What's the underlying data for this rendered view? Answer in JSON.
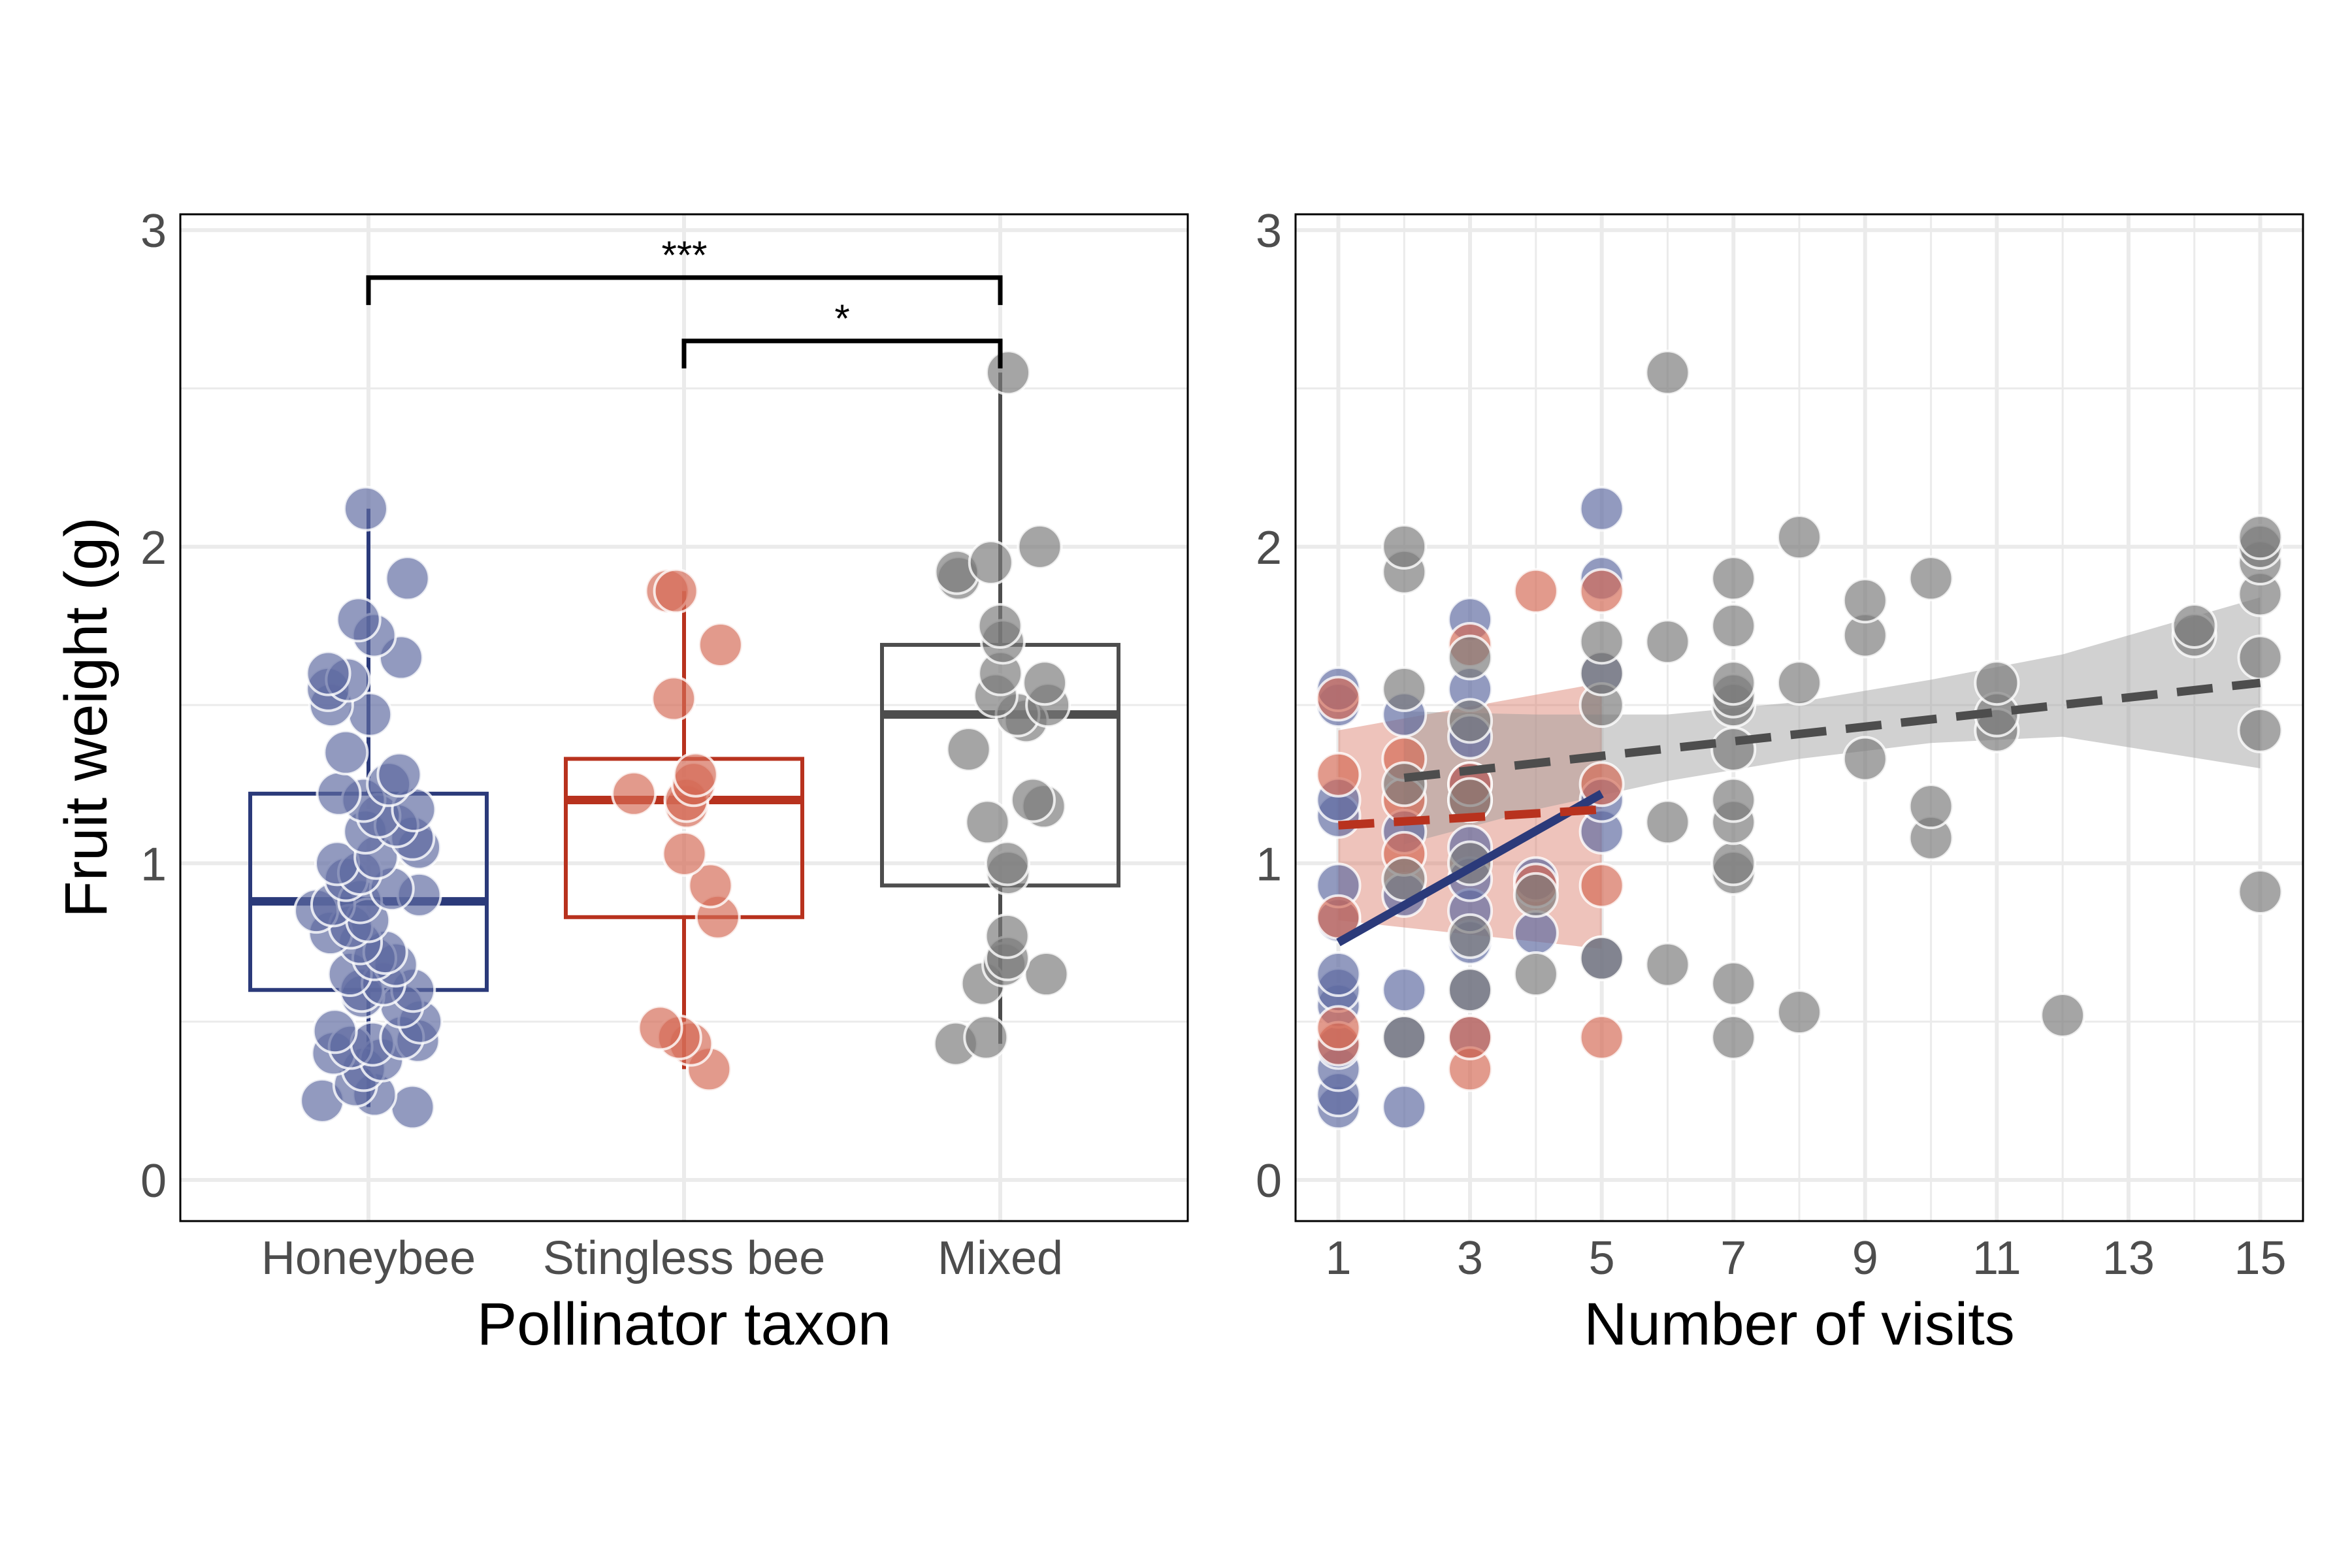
{
  "colors": {
    "honeybee": "#2b3a7a",
    "stingless": "#b8321e",
    "mixed": "#4d4d4d",
    "honeybee_fill": "#5e6aa0",
    "stingless_fill": "#d46a55",
    "mixed_fill": "#7a7a7a",
    "grid": "#ebebeb"
  },
  "chart_data": [
    {
      "type": "box",
      "title": "",
      "xlabel": "Pollinator taxon",
      "ylabel": "Fruit weight (g)",
      "ylim": [
        -0.13,
        3.05
      ],
      "yticks": [
        "0",
        "1",
        "2",
        "3"
      ],
      "categories": [
        "Honeybee",
        "Stingless bee",
        "Mixed"
      ],
      "grid": true,
      "boxes": [
        {
          "name": "Honeybee",
          "whisker_low": 0.23,
          "q1": 0.6,
          "median": 0.88,
          "q3": 1.22,
          "whisker_high": 2.12,
          "points": [
            0.23,
            0.25,
            0.27,
            0.3,
            0.35,
            0.38,
            0.4,
            0.42,
            0.43,
            0.44,
            0.45,
            0.47,
            0.5,
            0.55,
            0.58,
            0.6,
            0.6,
            0.62,
            0.65,
            0.68,
            0.7,
            0.72,
            0.75,
            0.78,
            0.8,
            0.82,
            0.85,
            0.87,
            0.88,
            0.9,
            0.92,
            0.95,
            0.97,
            1.0,
            1.02,
            1.05,
            1.08,
            1.1,
            1.12,
            1.15,
            1.17,
            1.2,
            1.22,
            1.25,
            1.28,
            1.35,
            1.47,
            1.5,
            1.55,
            1.58,
            1.6,
            1.65,
            1.72,
            1.77,
            1.9,
            2.12
          ]
        },
        {
          "name": "Stingless bee",
          "whisker_low": 0.35,
          "q1": 0.83,
          "median": 1.2,
          "q3": 1.33,
          "whisker_high": 1.86,
          "points": [
            0.35,
            0.43,
            0.45,
            0.48,
            0.83,
            0.93,
            1.03,
            1.18,
            1.2,
            1.22,
            1.25,
            1.28,
            1.52,
            1.69,
            1.86,
            1.86
          ]
        },
        {
          "name": "Mixed",
          "whisker_low": 0.43,
          "q1": 0.93,
          "median": 1.47,
          "q3": 1.69,
          "whisker_high": 2.55,
          "points": [
            0.43,
            0.45,
            0.62,
            0.65,
            0.68,
            0.7,
            0.77,
            0.97,
            1.0,
            1.13,
            1.18,
            1.2,
            1.36,
            1.45,
            1.47,
            1.5,
            1.53,
            1.57,
            1.6,
            1.7,
            1.75,
            1.9,
            1.92,
            1.95,
            2.0,
            2.55
          ]
        }
      ],
      "annotations": [
        {
          "from": "Honeybee",
          "to": "Mixed",
          "y": 2.85,
          "label": "***"
        },
        {
          "from": "Stingless bee",
          "to": "Mixed",
          "y": 2.65,
          "label": "*"
        }
      ]
    },
    {
      "type": "scatter",
      "title": "",
      "xlabel": "Number of visits",
      "ylabel": "",
      "xlim": [
        0.35,
        15.65
      ],
      "ylim": [
        -0.13,
        3.05
      ],
      "xticks": [
        "1",
        "3",
        "5",
        "7",
        "9",
        "11",
        "13",
        "15"
      ],
      "yticks": [
        "0",
        "1",
        "2",
        "3"
      ],
      "grid": true,
      "series": [
        {
          "group": "Honeybee",
          "points": [
            [
              1,
              0.23
            ],
            [
              1,
              0.27
            ],
            [
              1,
              0.35
            ],
            [
              1,
              0.42
            ],
            [
              1,
              0.55
            ],
            [
              1,
              0.6
            ],
            [
              1,
              0.65
            ],
            [
              1,
              0.82
            ],
            [
              1,
              0.93
            ],
            [
              1,
              1.15
            ],
            [
              1,
              1.2
            ],
            [
              1,
              1.5
            ],
            [
              1,
              1.55
            ],
            [
              2,
              0.23
            ],
            [
              2,
              0.45
            ],
            [
              2,
              0.6
            ],
            [
              2,
              0.9
            ],
            [
              2,
              1.1
            ],
            [
              2,
              1.47
            ],
            [
              3,
              0.45
            ],
            [
              3,
              0.6
            ],
            [
              3,
              0.75
            ],
            [
              3,
              0.85
            ],
            [
              3,
              0.95
            ],
            [
              3,
              1.05
            ],
            [
              3,
              1.25
            ],
            [
              3,
              1.4
            ],
            [
              3,
              1.55
            ],
            [
              3,
              1.77
            ],
            [
              4,
              0.78
            ],
            [
              4,
              0.95
            ],
            [
              5,
              0.7
            ],
            [
              5,
              1.1
            ],
            [
              5,
              1.2
            ],
            [
              5,
              1.6
            ],
            [
              5,
              1.9
            ],
            [
              5,
              2.12
            ]
          ],
          "fit": {
            "x": [
              1,
              5
            ],
            "y": [
              0.75,
              1.22
            ],
            "style": "solid"
          }
        },
        {
          "group": "Stingless bee",
          "points": [
            [
              1,
              0.43
            ],
            [
              1,
              0.48
            ],
            [
              1,
              0.83
            ],
            [
              1,
              1.28
            ],
            [
              1,
              1.52
            ],
            [
              2,
              1.03
            ],
            [
              2,
              1.2
            ],
            [
              2,
              1.33
            ],
            [
              3,
              0.35
            ],
            [
              3,
              0.45
            ],
            [
              3,
              1.2
            ],
            [
              3,
              1.25
            ],
            [
              3,
              1.69
            ],
            [
              4,
              0.93
            ],
            [
              4,
              1.86
            ],
            [
              5,
              0.45
            ],
            [
              5,
              0.93
            ],
            [
              5,
              1.25
            ],
            [
              5,
              1.86
            ]
          ],
          "fit": {
            "x": [
              1,
              5
            ],
            "y": [
              1.12,
              1.17
            ],
            "style": "dashed"
          },
          "band": {
            "x": [
              1,
              5
            ],
            "lower": [
              0.82,
              0.73
            ],
            "upper": [
              1.42,
              1.57
            ]
          }
        },
        {
          "group": "Mixed",
          "points": [
            [
              2,
              0.45
            ],
            [
              2,
              0.95
            ],
            [
              2,
              1.25
            ],
            [
              2,
              1.55
            ],
            [
              2,
              1.92
            ],
            [
              2,
              2.0
            ],
            [
              3,
              0.6
            ],
            [
              3,
              0.77
            ],
            [
              3,
              1.0
            ],
            [
              3,
              1.2
            ],
            [
              3,
              1.45
            ],
            [
              3,
              1.65
            ],
            [
              4,
              0.65
            ],
            [
              4,
              0.9
            ],
            [
              5,
              0.7
            ],
            [
              5,
              1.5
            ],
            [
              5,
              1.6
            ],
            [
              5,
              1.7
            ],
            [
              6,
              0.68
            ],
            [
              6,
              1.13
            ],
            [
              6,
              1.7
            ],
            [
              6,
              2.55
            ],
            [
              7,
              0.45
            ],
            [
              7,
              0.62
            ],
            [
              7,
              0.97
            ],
            [
              7,
              1.0
            ],
            [
              7,
              1.13
            ],
            [
              7,
              1.2
            ],
            [
              7,
              1.36
            ],
            [
              7,
              1.5
            ],
            [
              7,
              1.53
            ],
            [
              7,
              1.57
            ],
            [
              7,
              1.75
            ],
            [
              7,
              1.9
            ],
            [
              8,
              0.53
            ],
            [
              8,
              1.57
            ],
            [
              8,
              2.03
            ],
            [
              9,
              1.33
            ],
            [
              9,
              1.72
            ],
            [
              9,
              1.83
            ],
            [
              10,
              1.08
            ],
            [
              10,
              1.18
            ],
            [
              10,
              1.9
            ],
            [
              11,
              1.42
            ],
            [
              11,
              1.47
            ],
            [
              11,
              1.57
            ],
            [
              12,
              0.52
            ],
            [
              14,
              1.72
            ],
            [
              14,
              1.75
            ],
            [
              15,
              0.91
            ],
            [
              15,
              1.42
            ],
            [
              15,
              1.65
            ],
            [
              15,
              1.85
            ],
            [
              15,
              1.95
            ],
            [
              15,
              2.0
            ],
            [
              15,
              2.03
            ]
          ],
          "fit": {
            "x": [
              2,
              15
            ],
            "y": [
              1.27,
              1.57
            ],
            "style": "dashed"
          },
          "band": {
            "x": [
              2,
              4,
              6,
              8,
              10,
              12,
              15
            ],
            "lower": [
              1.06,
              1.17,
              1.26,
              1.33,
              1.38,
              1.4,
              1.3
            ],
            "upper": [
              1.48,
              1.47,
              1.47,
              1.51,
              1.58,
              1.66,
              1.84
            ]
          }
        }
      ]
    }
  ]
}
